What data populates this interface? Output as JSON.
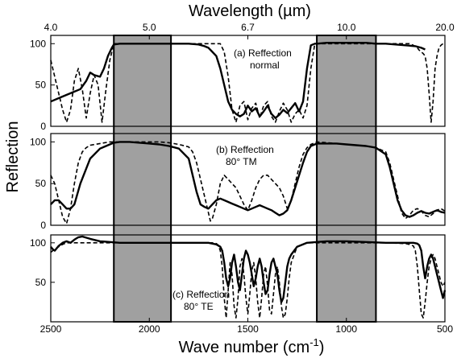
{
  "chart_data": {
    "type": "line",
    "top_axis": {
      "title": "Wavelength (µm)",
      "tick_labels": [
        "4.0",
        "5.0",
        "6.7",
        "10.0",
        "20.0"
      ],
      "tick_positions_cm": [
        2500,
        2000,
        1500,
        1000,
        500
      ]
    },
    "bottom_axis": {
      "title": "Wave number (cm⁻¹)",
      "title_main": "Wave number (cm",
      "title_sup": "-1",
      "title_close": ")",
      "tick_labels": [
        "2500",
        "2000",
        "1500",
        "1000",
        "500"
      ],
      "xlim": [
        2500,
        500
      ]
    },
    "ylabel": "Reflection",
    "y_tick_labels": [
      "0",
      "50",
      "100"
    ],
    "ylim": [
      0,
      110
    ],
    "shaded_bands_cm": [
      [
        2180,
        1890
      ],
      [
        1150,
        850
      ]
    ],
    "panels": [
      {
        "id": "a",
        "label_line1": "(a) Reffection",
        "label_line2": "normal",
        "series": [
          {
            "style": "solid",
            "x": [
              2500,
              2450,
              2400,
              2350,
              2320,
              2300,
              2280,
              2250,
              2230,
              2210,
              2190,
              2180,
              2150,
              2100,
              2050,
              2000,
              1950,
              1900,
              1850,
              1800,
              1750,
              1720,
              1700,
              1680,
              1660,
              1640,
              1620,
              1600,
              1580,
              1560,
              1540,
              1520,
              1500,
              1480,
              1460,
              1440,
              1420,
              1400,
              1380,
              1360,
              1340,
              1320,
              1300,
              1280,
              1260,
              1240,
              1220,
              1200,
              1180,
              1160,
              1150,
              1100,
              1000,
              900,
              850,
              800,
              750,
              700,
              650,
              620,
              600
            ],
            "y": [
              30,
              35,
              40,
              45,
              55,
              65,
              62,
              60,
              70,
              85,
              95,
              99,
              100,
              100,
              100,
              100,
              100,
              100,
              100,
              100,
              99,
              97,
              95,
              90,
              85,
              70,
              50,
              30,
              20,
              15,
              12,
              15,
              25,
              18,
              22,
              12,
              18,
              25,
              15,
              10,
              14,
              20,
              16,
              22,
              28,
              18,
              30,
              70,
              98,
              100,
              100,
              101,
              101,
              101,
              100,
              100,
              99,
              98,
              97,
              95,
              93
            ]
          },
          {
            "style": "dashed",
            "x": [
              2500,
              2480,
              2460,
              2440,
              2420,
              2400,
              2380,
              2360,
              2340,
              2320,
              2300,
              2280,
              2260,
              2240,
              2220,
              2200,
              2180,
              2150,
              2100,
              2050,
              2000,
              1950,
              1900,
              1850,
              1800,
              1760,
              1740,
              1720,
              1700,
              1680,
              1660,
              1650,
              1640,
              1620,
              1600,
              1580,
              1560,
              1540,
              1520,
              1500,
              1480,
              1460,
              1440,
              1420,
              1400,
              1380,
              1360,
              1340,
              1320,
              1300,
              1280,
              1260,
              1240,
              1220,
              1200,
              1180,
              1160,
              1150,
              1100,
              1000,
              900,
              850,
              800,
              750,
              700,
              680,
              660,
              640,
              630,
              620,
              610,
              600,
              590,
              580,
              570,
              560,
              550,
              540,
              530,
              520,
              510,
              500
            ],
            "y": [
              80,
              60,
              40,
              20,
              5,
              20,
              55,
              70,
              45,
              10,
              40,
              62,
              50,
              5,
              45,
              80,
              100,
              100,
              100,
              100,
              100,
              100,
              100,
              100,
              100,
              100,
              100,
              100,
              100,
              100,
              100,
              100,
              100,
              90,
              60,
              20,
              5,
              25,
              30,
              8,
              22,
              28,
              10,
              25,
              30,
              12,
              5,
              18,
              28,
              20,
              5,
              15,
              20,
              10,
              25,
              70,
              100,
              100,
              100,
              100,
              100,
              100,
              100,
              100,
              100,
              100,
              98,
              95,
              92,
              90,
              88,
              85,
              70,
              40,
              5,
              30,
              70,
              85,
              95,
              98,
              100,
              100
            ]
          }
        ]
      },
      {
        "id": "b",
        "label_line1": "(b) Reffection",
        "label_line2": "80° TM",
        "series": [
          {
            "style": "solid",
            "x": [
              2500,
              2480,
              2460,
              2440,
              2420,
              2400,
              2380,
              2350,
              2300,
              2250,
              2200,
              2180,
              2150,
              2100,
              2050,
              2000,
              1950,
              1900,
              1850,
              1800,
              1780,
              1760,
              1740,
              1720,
              1700,
              1680,
              1660,
              1640,
              1620,
              1600,
              1580,
              1560,
              1540,
              1520,
              1500,
              1480,
              1460,
              1440,
              1420,
              1400,
              1380,
              1360,
              1340,
              1320,
              1300,
              1280,
              1260,
              1240,
              1220,
              1200,
              1180,
              1160,
              1150,
              1100,
              1050,
              1000,
              950,
              900,
              850,
              800,
              780,
              760,
              740,
              720,
              700,
              680,
              660,
              640,
              620,
              600,
              580,
              560,
              540,
              520,
              500
            ],
            "y": [
              25,
              30,
              30,
              25,
              20,
              20,
              25,
              50,
              80,
              92,
              97,
              99,
              100,
              100,
              99,
              98,
              97,
              95,
              92,
              80,
              60,
              40,
              25,
              22,
              20,
              25,
              30,
              32,
              30,
              28,
              26,
              24,
              22,
              20,
              18,
              20,
              22,
              24,
              22,
              20,
              18,
              15,
              12,
              14,
              18,
              30,
              45,
              60,
              75,
              88,
              95,
              97,
              98,
              98,
              98,
              97,
              96,
              95,
              93,
              85,
              70,
              50,
              30,
              18,
              12,
              10,
              12,
              15,
              17,
              15,
              14,
              16,
              18,
              16,
              15
            ]
          },
          {
            "style": "dashed",
            "x": [
              2500,
              2480,
              2460,
              2440,
              2420,
              2400,
              2380,
              2360,
              2340,
              2320,
              2300,
              2250,
              2200,
              2180,
              2150,
              2100,
              2050,
              2000,
              1950,
              1900,
              1850,
              1800,
              1780,
              1760,
              1740,
              1720,
              1700,
              1690,
              1680,
              1660,
              1640,
              1620,
              1600,
              1580,
              1560,
              1540,
              1520,
              1500,
              1480,
              1460,
              1440,
              1420,
              1400,
              1380,
              1360,
              1340,
              1320,
              1300,
              1280,
              1260,
              1240,
              1220,
              1200,
              1180,
              1160,
              1150,
              1100,
              1050,
              1000,
              950,
              900,
              850,
              800,
              780,
              760,
              740,
              720,
              700,
              680,
              660,
              640,
              620,
              600,
              580,
              560,
              540,
              520,
              500
            ],
            "y": [
              60,
              50,
              30,
              10,
              2,
              20,
              50,
              75,
              88,
              93,
              96,
              98,
              100,
              100,
              100,
              100,
              100,
              100,
              100,
              99,
              97,
              94,
              88,
              75,
              55,
              35,
              15,
              5,
              8,
              25,
              50,
              60,
              55,
              50,
              45,
              35,
              25,
              18,
              30,
              45,
              55,
              60,
              60,
              55,
              50,
              45,
              35,
              20,
              30,
              50,
              70,
              85,
              93,
              97,
              99,
              100,
              99,
              98,
              97,
              96,
              95,
              93,
              88,
              75,
              55,
              35,
              15,
              8,
              12,
              18,
              20,
              17,
              12,
              10,
              14,
              18,
              20,
              17
            ]
          }
        ]
      },
      {
        "id": "c",
        "label_line1": "(c) Reffection",
        "label_line2": "80° TE",
        "series": [
          {
            "style": "solid",
            "x": [
              2500,
              2490,
              2480,
              2460,
              2440,
              2420,
              2400,
              2380,
              2360,
              2340,
              2300,
              2250,
              2200,
              2150,
              2100,
              2050,
              2000,
              1950,
              1900,
              1850,
              1800,
              1750,
              1700,
              1680,
              1660,
              1640,
              1630,
              1620,
              1610,
              1600,
              1590,
              1580,
              1570,
              1560,
              1550,
              1540,
              1530,
              1520,
              1510,
              1500,
              1490,
              1480,
              1470,
              1460,
              1450,
              1440,
              1430,
              1420,
              1410,
              1400,
              1390,
              1380,
              1370,
              1360,
              1350,
              1340,
              1330,
              1320,
              1310,
              1300,
              1290,
              1280,
              1250,
              1200,
              1150,
              1100,
              1000,
              900,
              800,
              700,
              660,
              640,
              630,
              620,
              610,
              600,
              590,
              580,
              570,
              560,
              550,
              540,
              530,
              520,
              510,
              500
            ],
            "y": [
              95,
              92,
              90,
              96,
              100,
              102,
              100,
              104,
              107,
              108,
              105,
              102,
              101,
              100,
              100,
              100,
              100,
              100,
              100,
              100,
              100,
              100,
              100,
              99,
              98,
              95,
              90,
              75,
              55,
              45,
              55,
              75,
              85,
              70,
              50,
              40,
              60,
              80,
              90,
              85,
              75,
              60,
              45,
              55,
              70,
              80,
              70,
              50,
              35,
              40,
              60,
              75,
              80,
              70,
              60,
              40,
              25,
              30,
              50,
              70,
              80,
              85,
              95,
              100,
              101,
              102,
              102,
              101,
              100,
              100,
              100,
              99,
              97,
              90,
              70,
              55,
              70,
              80,
              85,
              80,
              70,
              60,
              50,
              40,
              30,
              40
            ]
          },
          {
            "style": "dashed",
            "x": [
              2500,
              2490,
              2480,
              2460,
              2440,
              2420,
              2400,
              2380,
              2360,
              2340,
              2300,
              2250,
              2200,
              2150,
              2100,
              2050,
              2000,
              1950,
              1900,
              1850,
              1800,
              1750,
              1700,
              1680,
              1660,
              1650,
              1640,
              1630,
              1620,
              1610,
              1600,
              1590,
              1580,
              1570,
              1560,
              1550,
              1540,
              1530,
              1520,
              1510,
              1500,
              1490,
              1480,
              1470,
              1460,
              1450,
              1440,
              1430,
              1420,
              1410,
              1400,
              1390,
              1380,
              1370,
              1360,
              1350,
              1340,
              1330,
              1320,
              1310,
              1300,
              1290,
              1280,
              1250,
              1200,
              1150,
              1100,
              1000,
              900,
              800,
              700,
              680,
              660,
              650,
              640,
              630,
              620,
              610,
              600,
              590,
              580,
              570,
              560,
              550,
              540,
              530,
              520,
              510,
              500
            ],
            "y": [
              88,
              90,
              92,
              95,
              98,
              100,
              100,
              100,
              100,
              100,
              100,
              100,
              100,
              100,
              100,
              100,
              100,
              100,
              100,
              100,
              100,
              100,
              100,
              100,
              99,
              97,
              90,
              70,
              30,
              5,
              40,
              75,
              60,
              20,
              5,
              30,
              70,
              80,
              60,
              30,
              10,
              35,
              65,
              75,
              55,
              25,
              5,
              30,
              60,
              70,
              45,
              15,
              10,
              35,
              60,
              70,
              50,
              20,
              5,
              10,
              30,
              55,
              75,
              95,
              100,
              100,
              100,
              100,
              100,
              100,
              99,
              98,
              96,
              90,
              70,
              40,
              10,
              5,
              25,
              50,
              70,
              80,
              85,
              80,
              70,
              60,
              50,
              45,
              50
            ]
          }
        ]
      }
    ]
  }
}
